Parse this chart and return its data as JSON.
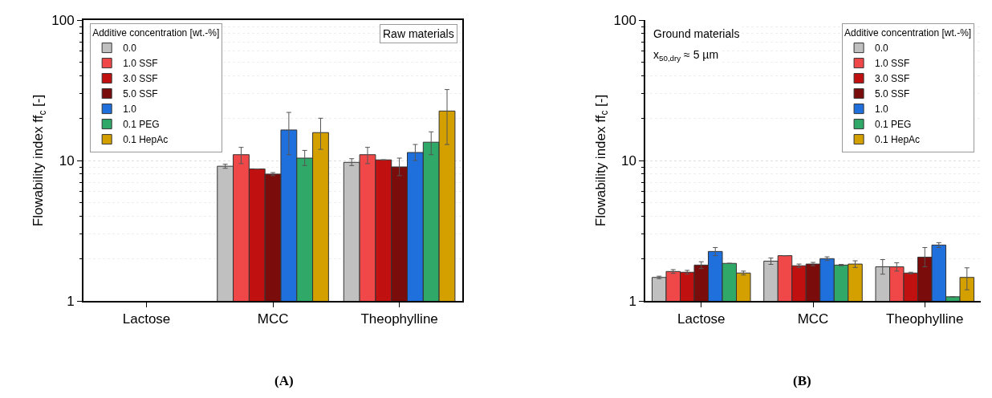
{
  "chart_data": [
    {
      "type": "bar",
      "categories": [
        "Lactose",
        "MCC",
        "Theophylline"
      ],
      "ylabel": "Flowability index ff$_{c}$ [-]",
      "log": "y",
      "ylim": [
        1,
        100
      ],
      "yticks": [
        1,
        10,
        100
      ],
      "grid": "y",
      "legend": "top left",
      "legend_title": "Additive concentration [wt.-%]",
      "annotations": [
        "Raw materials",
        "(A)"
      ],
      "series": [
        {
          "name": "0.0",
          "color": "#c0c0c0",
          "values": [
            null,
            9.1,
            9.7
          ],
          "errors": [
            null,
            [
              8.8,
              9.4
            ],
            [
              9.2,
              10.3
            ]
          ]
        },
        {
          "name": "1.0 SSF",
          "color": "#f04848",
          "values": [
            null,
            11,
            11
          ],
          "errors": [
            null,
            [
              9.5,
              12.4
            ],
            [
              9.5,
              12.4
            ]
          ]
        },
        {
          "name": "3.0 SSF",
          "color": "#c01010",
          "values": [
            null,
            8.7,
            10.1
          ],
          "errors": [
            null,
            null,
            null
          ]
        },
        {
          "name": "5.0 SSF",
          "color": "#7a0c0c",
          "values": [
            null,
            8.0,
            9.0
          ],
          "errors": [
            null,
            [
              7.8,
              8.2
            ],
            [
              7.8,
              10.4
            ]
          ]
        },
        {
          "name": "1.0",
          "color": "#1f6fdc",
          "values": [
            null,
            16.5,
            11.4
          ],
          "errors": [
            null,
            [
              11,
              22
            ],
            [
              10,
              13
            ]
          ]
        },
        {
          "name": "0.1 PEG",
          "color": "#30a868",
          "values": [
            null,
            10.4,
            13.5
          ],
          "errors": [
            null,
            [
              9.2,
              11.8
            ],
            [
              11,
              16
            ]
          ]
        },
        {
          "name": "0.1 HepAc",
          "color": "#d4a000",
          "values": [
            null,
            15.8,
            22.5
          ],
          "errors": [
            null,
            [
              12,
              20
            ],
            [
              13,
              32
            ]
          ]
        }
      ]
    },
    {
      "type": "bar",
      "categories": [
        "Lactose",
        "MCC",
        "Theophylline"
      ],
      "ylabel": "Flowability index ff$_{c}$ [-]",
      "log": "y",
      "ylim": [
        1,
        100
      ],
      "yticks": [
        1,
        10,
        100
      ],
      "grid": "y",
      "legend": "top right",
      "legend_title": "Additive concentration [wt.-%]",
      "annotations": [
        "Ground materials",
        "x$_{50,dry}$ ≈ 5 µm",
        "(B)"
      ],
      "series": [
        {
          "name": "0.0",
          "color": "#c0c0c0",
          "values": [
            1.47,
            1.92,
            1.75
          ],
          "errors": [
            [
              1.44,
              1.5
            ],
            [
              1.82,
              2.02
            ],
            [
              1.55,
              1.97
            ]
          ]
        },
        {
          "name": "1.0 SSF",
          "color": "#f04848",
          "values": [
            1.62,
            2.1,
            1.75
          ],
          "errors": [
            [
              1.57,
              1.67
            ],
            null,
            [
              1.63,
              1.87
            ]
          ]
        },
        {
          "name": "3.0 SSF",
          "color": "#c01010",
          "values": [
            1.6,
            1.78,
            1.58
          ],
          "errors": [
            [
              1.55,
              1.65
            ],
            [
              1.73,
              1.83
            ],
            [
              1.56,
              1.6
            ]
          ]
        },
        {
          "name": "5.0 SSF",
          "color": "#7a0c0c",
          "values": [
            1.8,
            1.83,
            2.05
          ],
          "errors": [
            [
              1.7,
              1.9
            ],
            [
              1.78,
              1.88
            ],
            [
              1.75,
              2.4
            ]
          ]
        },
        {
          "name": "1.0",
          "color": "#1f6fdc",
          "values": [
            2.25,
            2.0,
            2.5
          ],
          "errors": [
            [
              2.1,
              2.4
            ],
            [
              1.94,
              2.06
            ],
            [
              2.4,
              2.6
            ]
          ]
        },
        {
          "name": "0.1 PEG",
          "color": "#30a868",
          "values": [
            1.85,
            1.8,
            1.07
          ],
          "errors": [
            null,
            [
              1.78,
              1.82
            ],
            null
          ]
        },
        {
          "name": "0.1 HepAc",
          "color": "#d4a000",
          "values": [
            1.58,
            1.83,
            1.47
          ],
          "errors": [
            [
              1.53,
              1.63
            ],
            [
              1.73,
              1.93
            ],
            [
              1.2,
              1.72
            ]
          ]
        }
      ]
    }
  ]
}
